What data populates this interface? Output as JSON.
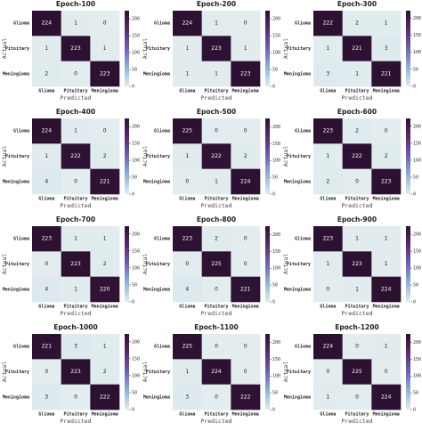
{
  "chart_data": [
    {
      "type": "heatmap",
      "title": "Epoch-100",
      "x_categories": [
        "Glioma",
        "Pituitary",
        "Meningioma"
      ],
      "y_categories": [
        "Glioma",
        "Pituitary",
        "Meningioma"
      ],
      "xlabel": "Predicted",
      "ylabel": "Actual",
      "values": [
        [
          224,
          1,
          0
        ],
        [
          1,
          223,
          1
        ],
        [
          2,
          0,
          223
        ]
      ],
      "clim": [
        0,
        224
      ],
      "cticks": [
        0,
        50,
        100,
        150,
        200
      ],
      "colormap": [
        "#e3edef",
        "#8fb4d6",
        "#6a62b8",
        "#5b2a6e",
        "#2c1131"
      ]
    },
    {
      "type": "heatmap",
      "title": "Epoch-200",
      "x_categories": [
        "Glioma",
        "Pituitary",
        "Meningioma"
      ],
      "y_categories": [
        "Glioma",
        "Pituitary",
        "Meningioma"
      ],
      "xlabel": "Predicted",
      "ylabel": "Actual",
      "values": [
        [
          224,
          1,
          0
        ],
        [
          1,
          223,
          1
        ],
        [
          1,
          1,
          223
        ]
      ],
      "clim": [
        0,
        224
      ],
      "cticks": [
        0,
        50,
        100,
        150,
        200
      ],
      "colormap": [
        "#e3edef",
        "#8fb4d6",
        "#6a62b8",
        "#5b2a6e",
        "#2c1131"
      ]
    },
    {
      "type": "heatmap",
      "title": "Epoch-300",
      "x_categories": [
        "Glioma",
        "Pituitary",
        "Meningioma"
      ],
      "y_categories": [
        "Glioma",
        "Pituitary",
        "Meningioma"
      ],
      "xlabel": "Predicted",
      "ylabel": "Actual",
      "values": [
        [
          222,
          2,
          1
        ],
        [
          1,
          221,
          3
        ],
        [
          3,
          1,
          221
        ]
      ],
      "clim": [
        0,
        222
      ],
      "cticks": [
        0,
        50,
        100,
        150,
        200
      ],
      "colormap": [
        "#e3edef",
        "#8fb4d6",
        "#6a62b8",
        "#5b2a6e",
        "#2c1131"
      ]
    },
    {
      "type": "heatmap",
      "title": "Epoch-400",
      "x_categories": [
        "Glioma",
        "Pituitary",
        "Meningioma"
      ],
      "y_categories": [
        "Glioma",
        "Pituitary",
        "Meningioma"
      ],
      "xlabel": "Predicted",
      "ylabel": "Actual",
      "values": [
        [
          224,
          1,
          0
        ],
        [
          1,
          222,
          2
        ],
        [
          4,
          0,
          221
        ]
      ],
      "clim": [
        0,
        224
      ],
      "cticks": [
        0,
        50,
        100,
        150,
        200
      ],
      "colormap": [
        "#e3edef",
        "#8fb4d6",
        "#6a62b8",
        "#5b2a6e",
        "#2c1131"
      ]
    },
    {
      "type": "heatmap",
      "title": "Epoch-500",
      "x_categories": [
        "Glioma",
        "Pituitary",
        "Meningioma"
      ],
      "y_categories": [
        "Glioma",
        "Pituitary",
        "Meningioma"
      ],
      "xlabel": "Predicted",
      "ylabel": "Actual",
      "values": [
        [
          225,
          0,
          0
        ],
        [
          1,
          222,
          2
        ],
        [
          0,
          1,
          224
        ]
      ],
      "clim": [
        0,
        225
      ],
      "cticks": [
        0,
        50,
        100,
        150,
        200
      ],
      "colormap": [
        "#e3edef",
        "#8fb4d6",
        "#6a62b8",
        "#5b2a6e",
        "#2c1131"
      ]
    },
    {
      "type": "heatmap",
      "title": "Epoch-600",
      "x_categories": [
        "Glioma",
        "Pituitary",
        "Meningioma"
      ],
      "y_categories": [
        "Glioma",
        "Pituitary",
        "Meningioma"
      ],
      "xlabel": "Predicted",
      "ylabel": "Actual",
      "values": [
        [
          223,
          2,
          0
        ],
        [
          1,
          222,
          2
        ],
        [
          2,
          0,
          223
        ]
      ],
      "clim": [
        0,
        223
      ],
      "cticks": [
        0,
        50,
        100,
        150,
        200
      ],
      "colormap": [
        "#e3edef",
        "#8fb4d6",
        "#6a62b8",
        "#5b2a6e",
        "#2c1131"
      ]
    },
    {
      "type": "heatmap",
      "title": "Epoch-700",
      "x_categories": [
        "Glioma",
        "Pituitary",
        "Meningioma"
      ],
      "y_categories": [
        "Glioma",
        "Pituitary",
        "Meningioma"
      ],
      "xlabel": "Predicted",
      "ylabel": "Actual",
      "values": [
        [
          223,
          1,
          1
        ],
        [
          0,
          223,
          2
        ],
        [
          4,
          1,
          220
        ]
      ],
      "clim": [
        0,
        223
      ],
      "cticks": [
        0,
        50,
        100,
        150,
        200
      ],
      "colormap": [
        "#e3edef",
        "#8fb4d6",
        "#6a62b8",
        "#5b2a6e",
        "#2c1131"
      ]
    },
    {
      "type": "heatmap",
      "title": "Epoch-800",
      "x_categories": [
        "Glioma",
        "Pituitary",
        "Meningioma"
      ],
      "y_categories": [
        "Glioma",
        "Pituitary",
        "Meningioma"
      ],
      "xlabel": "Predicted",
      "ylabel": "Actual",
      "values": [
        [
          223,
          2,
          0
        ],
        [
          0,
          225,
          0
        ],
        [
          4,
          0,
          221
        ]
      ],
      "clim": [
        0,
        225
      ],
      "cticks": [
        0,
        50,
        100,
        150,
        200
      ],
      "colormap": [
        "#e3edef",
        "#8fb4d6",
        "#6a62b8",
        "#5b2a6e",
        "#2c1131"
      ]
    },
    {
      "type": "heatmap",
      "title": "Epoch-900",
      "x_categories": [
        "Glioma",
        "Pituitary",
        "Meningioma"
      ],
      "y_categories": [
        "Glioma",
        "Pituitary",
        "Meningioma"
      ],
      "xlabel": "Predicted",
      "ylabel": "Actual",
      "values": [
        [
          223,
          1,
          1
        ],
        [
          1,
          223,
          1
        ],
        [
          0,
          1,
          224
        ]
      ],
      "clim": [
        0,
        224
      ],
      "cticks": [
        0,
        50,
        100,
        150,
        200
      ],
      "colormap": [
        "#e3edef",
        "#8fb4d6",
        "#6a62b8",
        "#5b2a6e",
        "#2c1131"
      ]
    },
    {
      "type": "heatmap",
      "title": "Epoch-1000",
      "x_categories": [
        "Glioma",
        "Pituitary",
        "Meningioma"
      ],
      "y_categories": [
        "Glioma",
        "Pituitary",
        "Meningioma"
      ],
      "xlabel": "Predicted",
      "ylabel": "Actual",
      "values": [
        [
          221,
          3,
          1
        ],
        [
          0,
          223,
          2
        ],
        [
          3,
          0,
          222
        ]
      ],
      "clim": [
        0,
        223
      ],
      "cticks": [
        0,
        50,
        100,
        150,
        200
      ],
      "colormap": [
        "#e3edef",
        "#8fb4d6",
        "#6a62b8",
        "#5b2a6e",
        "#2c1131"
      ]
    },
    {
      "type": "heatmap",
      "title": "Epoch-1100",
      "x_categories": [
        "Glioma",
        "Pituitary",
        "Meningioma"
      ],
      "y_categories": [
        "Glioma",
        "Pituitary",
        "Meningioma"
      ],
      "xlabel": "Predicted",
      "ylabel": "Actual",
      "values": [
        [
          225,
          0,
          0
        ],
        [
          1,
          224,
          0
        ],
        [
          3,
          0,
          222
        ]
      ],
      "clim": [
        0,
        225
      ],
      "cticks": [
        0,
        50,
        100,
        150,
        200
      ],
      "colormap": [
        "#e3edef",
        "#8fb4d6",
        "#6a62b8",
        "#5b2a6e",
        "#2c1131"
      ]
    },
    {
      "type": "heatmap",
      "title": "Epoch-1200",
      "x_categories": [
        "Glioma",
        "Pituitary",
        "Meningioma"
      ],
      "y_categories": [
        "Glioma",
        "Pituitary",
        "Meningioma"
      ],
      "xlabel": "Predicted",
      "ylabel": "Actual",
      "values": [
        [
          224,
          0,
          1
        ],
        [
          0,
          225,
          0
        ],
        [
          1,
          0,
          224
        ]
      ],
      "clim": [
        0,
        225
      ],
      "cticks": [
        0,
        50,
        100,
        150,
        200
      ],
      "colormap": [
        "#e3edef",
        "#8fb4d6",
        "#6a62b8",
        "#5b2a6e",
        "#2c1131"
      ]
    }
  ]
}
